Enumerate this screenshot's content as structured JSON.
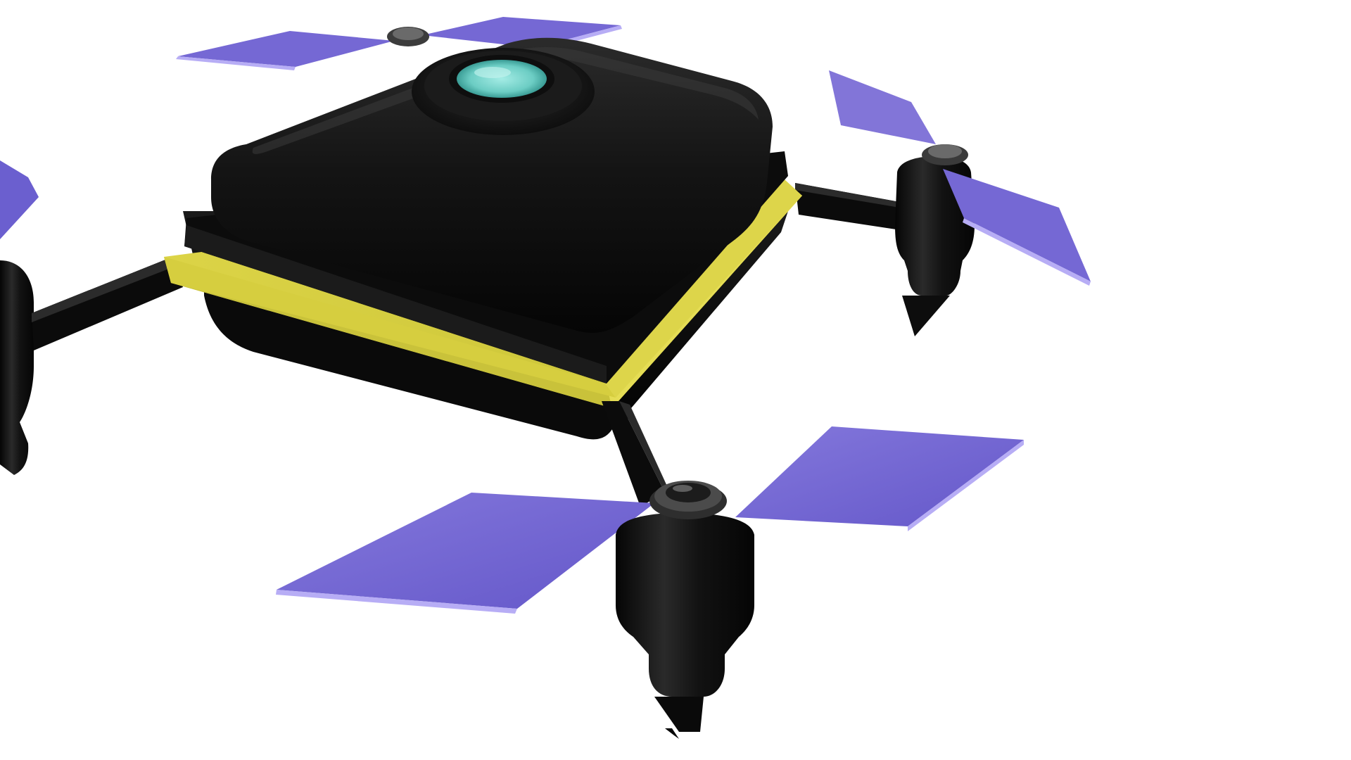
{
  "scene": {
    "subject": "quadcopter-drone-render",
    "background_color": "#ffffff",
    "colors": {
      "body": "#111111",
      "body_highlight": "#2a2a2a",
      "trim": "#d4cc3c",
      "trim_shade": "#b8b12e",
      "propeller": "#6b5fcf",
      "propeller_light": "#8275d8",
      "propeller_edge": "#b9b0ff",
      "lens": "#7fd8d0",
      "lens_rim": "#1a1a1a",
      "motor": "#141414",
      "hub": "#3b3b3b"
    }
  }
}
